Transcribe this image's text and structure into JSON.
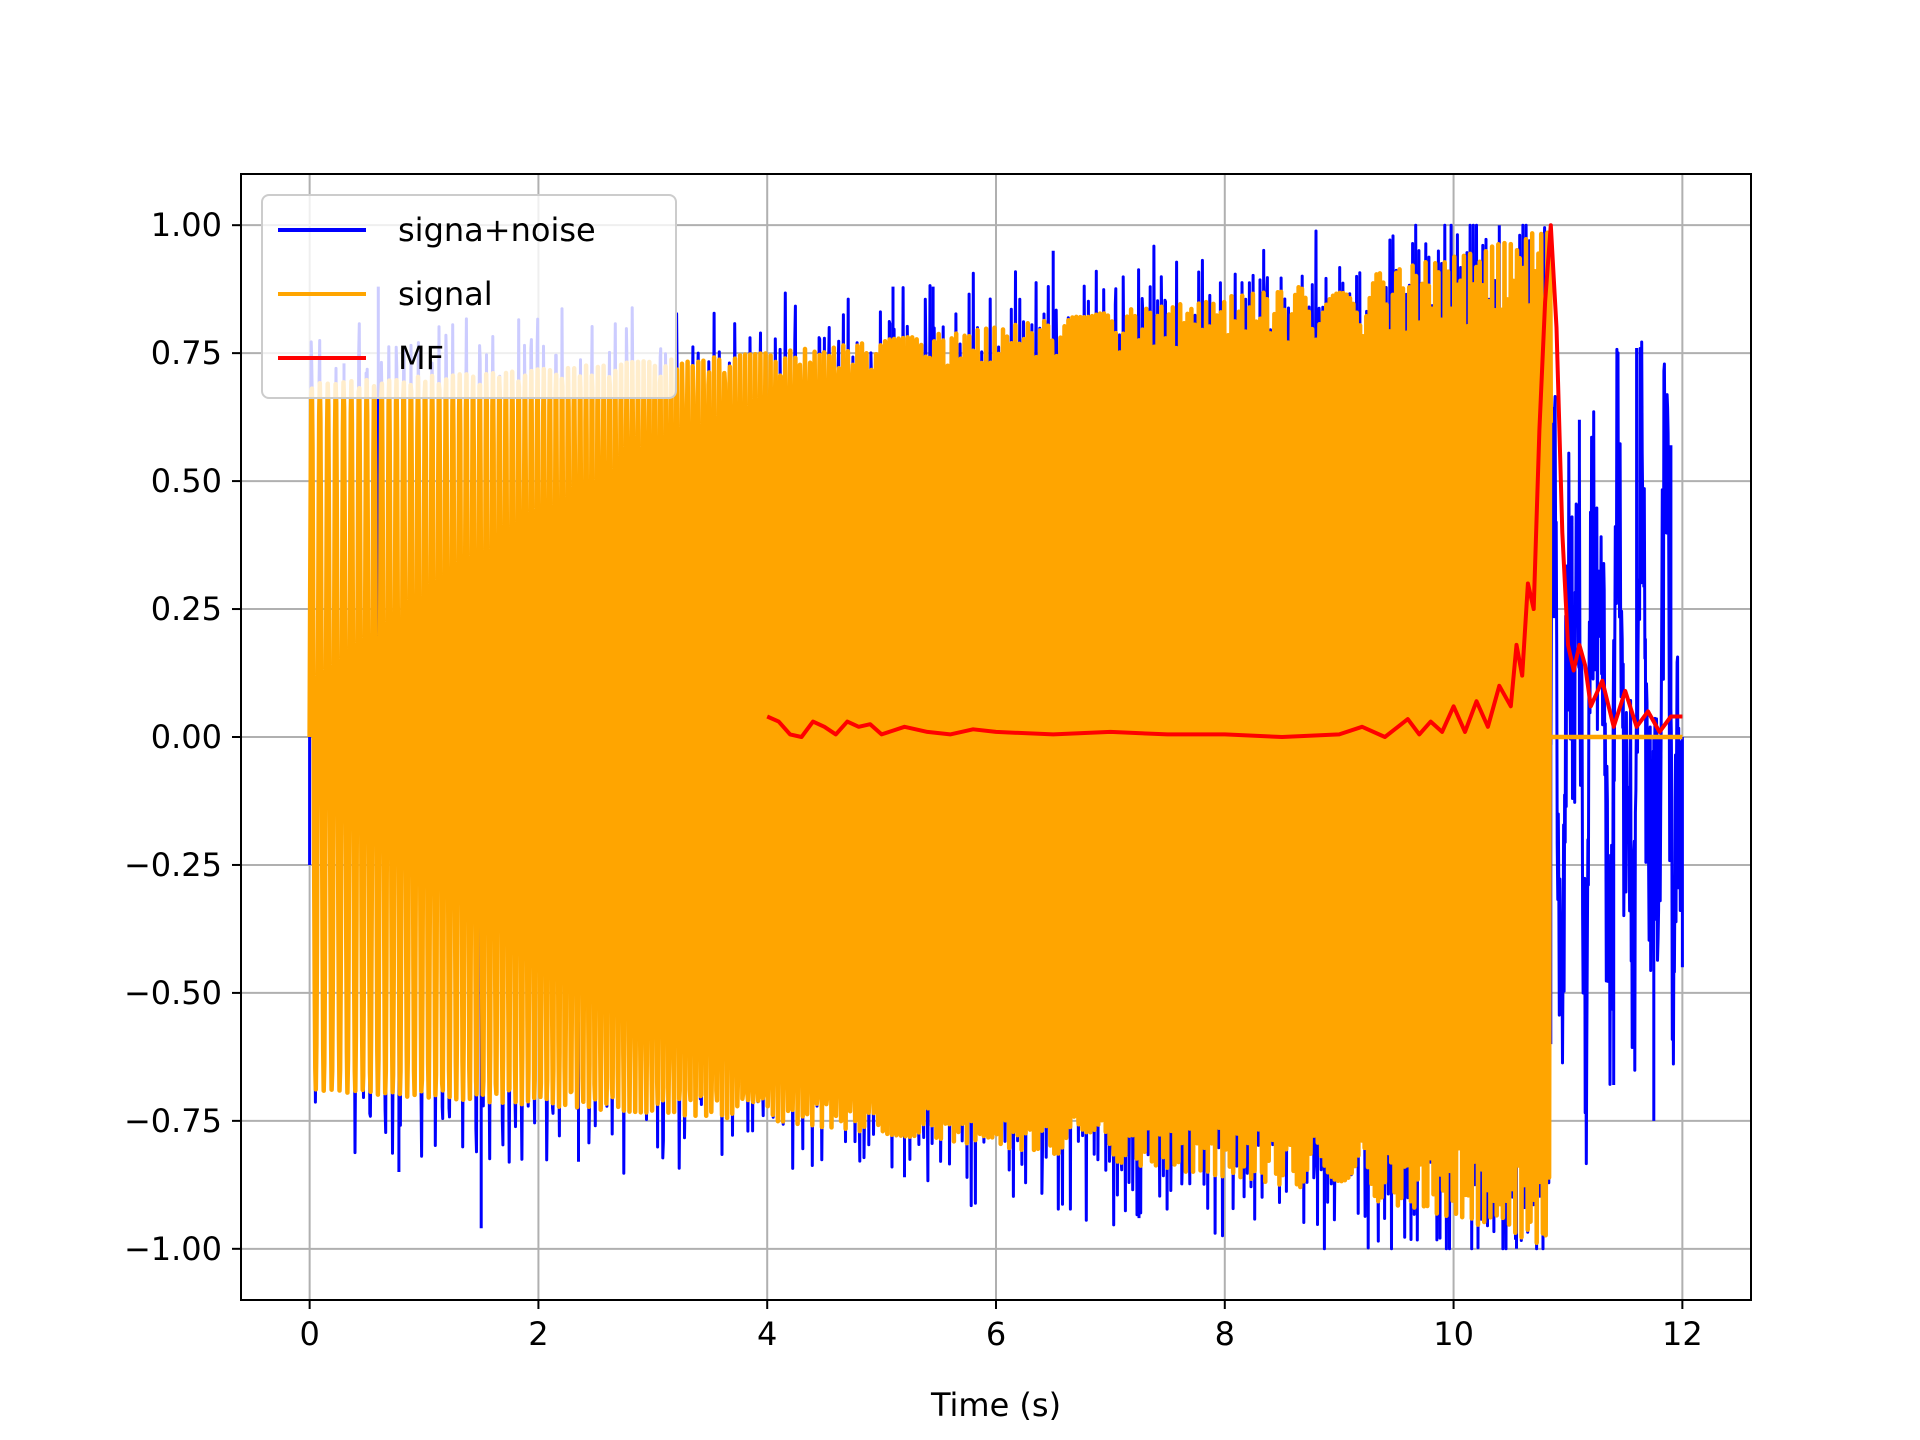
{
  "chart_data": {
    "type": "line",
    "title": "",
    "xlabel": "Time (s)",
    "ylabel": "",
    "xlim": [
      -0.6,
      12.6
    ],
    "ylim": [
      -1.1,
      1.1
    ],
    "xticks": [
      0,
      2,
      4,
      6,
      8,
      10,
      12
    ],
    "yticks": [
      1.0,
      0.75,
      0.5,
      0.25,
      0.0,
      -0.25,
      -0.5,
      -0.75,
      -1.0
    ],
    "xtick_labels": [
      "0",
      "2",
      "4",
      "6",
      "8",
      "10",
      "12"
    ],
    "ytick_labels": [
      "1.00",
      "0.75",
      "0.50",
      "0.25",
      "0.00",
      "−0.25",
      "−0.50",
      "−0.75",
      "−1.00"
    ],
    "grid": true,
    "legend_position": "top-left",
    "series": [
      {
        "name": "signa+noise",
        "color": "#0000ff",
        "description_points": {
          "x": [
            0.0,
            0.3,
            0.6,
            0.78,
            1.5,
            2.35,
            5.1,
            5.2,
            5.45,
            6.5,
            7.25,
            9.6,
            10.4,
            10.55,
            10.85,
            11.1,
            11.4,
            11.6,
            11.75,
            11.9,
            12.0
          ],
          "y": [
            -0.25,
            0.73,
            0.88,
            -0.85,
            -0.96,
            -0.83,
            0.88,
            -0.86,
            0.88,
            0.95,
            -0.94,
            0.0,
            1.0,
            -1.0,
            -0.6,
            0.62,
            -0.68,
            0.76,
            -0.75,
            0.57,
            -0.45
          ]
        }
      },
      {
        "name": "signal",
        "color": "#ffa500",
        "envelope": {
          "t": [
            0,
            2,
            4,
            6,
            8,
            9,
            10,
            10.5,
            10.85
          ],
          "amplitude": [
            0.69,
            0.72,
            0.75,
            0.8,
            0.86,
            0.89,
            0.94,
            0.97,
            1.0
          ]
        },
        "zero_after": 10.85,
        "end": 12.0
      },
      {
        "name": "MF",
        "color": "#ff0000",
        "x": [
          4.0,
          4.1,
          4.2,
          4.3,
          4.4,
          4.5,
          4.6,
          4.7,
          4.8,
          4.9,
          5.0,
          5.2,
          5.4,
          5.6,
          5.8,
          6.0,
          6.5,
          7.0,
          7.5,
          8.0,
          8.5,
          9.0,
          9.2,
          9.4,
          9.6,
          9.7,
          9.8,
          9.9,
          10.0,
          10.1,
          10.2,
          10.3,
          10.4,
          10.5,
          10.55,
          10.6,
          10.65,
          10.7,
          10.75,
          10.8,
          10.85,
          10.9,
          10.95,
          11.0,
          11.05,
          11.1,
          11.15,
          11.2,
          11.3,
          11.4,
          11.5,
          11.6,
          11.7,
          11.8,
          11.9,
          12.0
        ],
        "y": [
          0.04,
          0.03,
          0.005,
          0.0,
          0.03,
          0.02,
          0.005,
          0.03,
          0.02,
          0.025,
          0.005,
          0.02,
          0.01,
          0.005,
          0.015,
          0.01,
          0.005,
          0.01,
          0.005,
          0.005,
          0.0,
          0.005,
          0.02,
          0.0,
          0.035,
          0.005,
          0.03,
          0.01,
          0.06,
          0.01,
          0.07,
          0.02,
          0.1,
          0.06,
          0.18,
          0.12,
          0.3,
          0.25,
          0.6,
          0.85,
          1.0,
          0.8,
          0.4,
          0.18,
          0.13,
          0.18,
          0.14,
          0.06,
          0.11,
          0.02,
          0.09,
          0.02,
          0.05,
          0.01,
          0.04,
          0.04
        ]
      }
    ]
  }
}
